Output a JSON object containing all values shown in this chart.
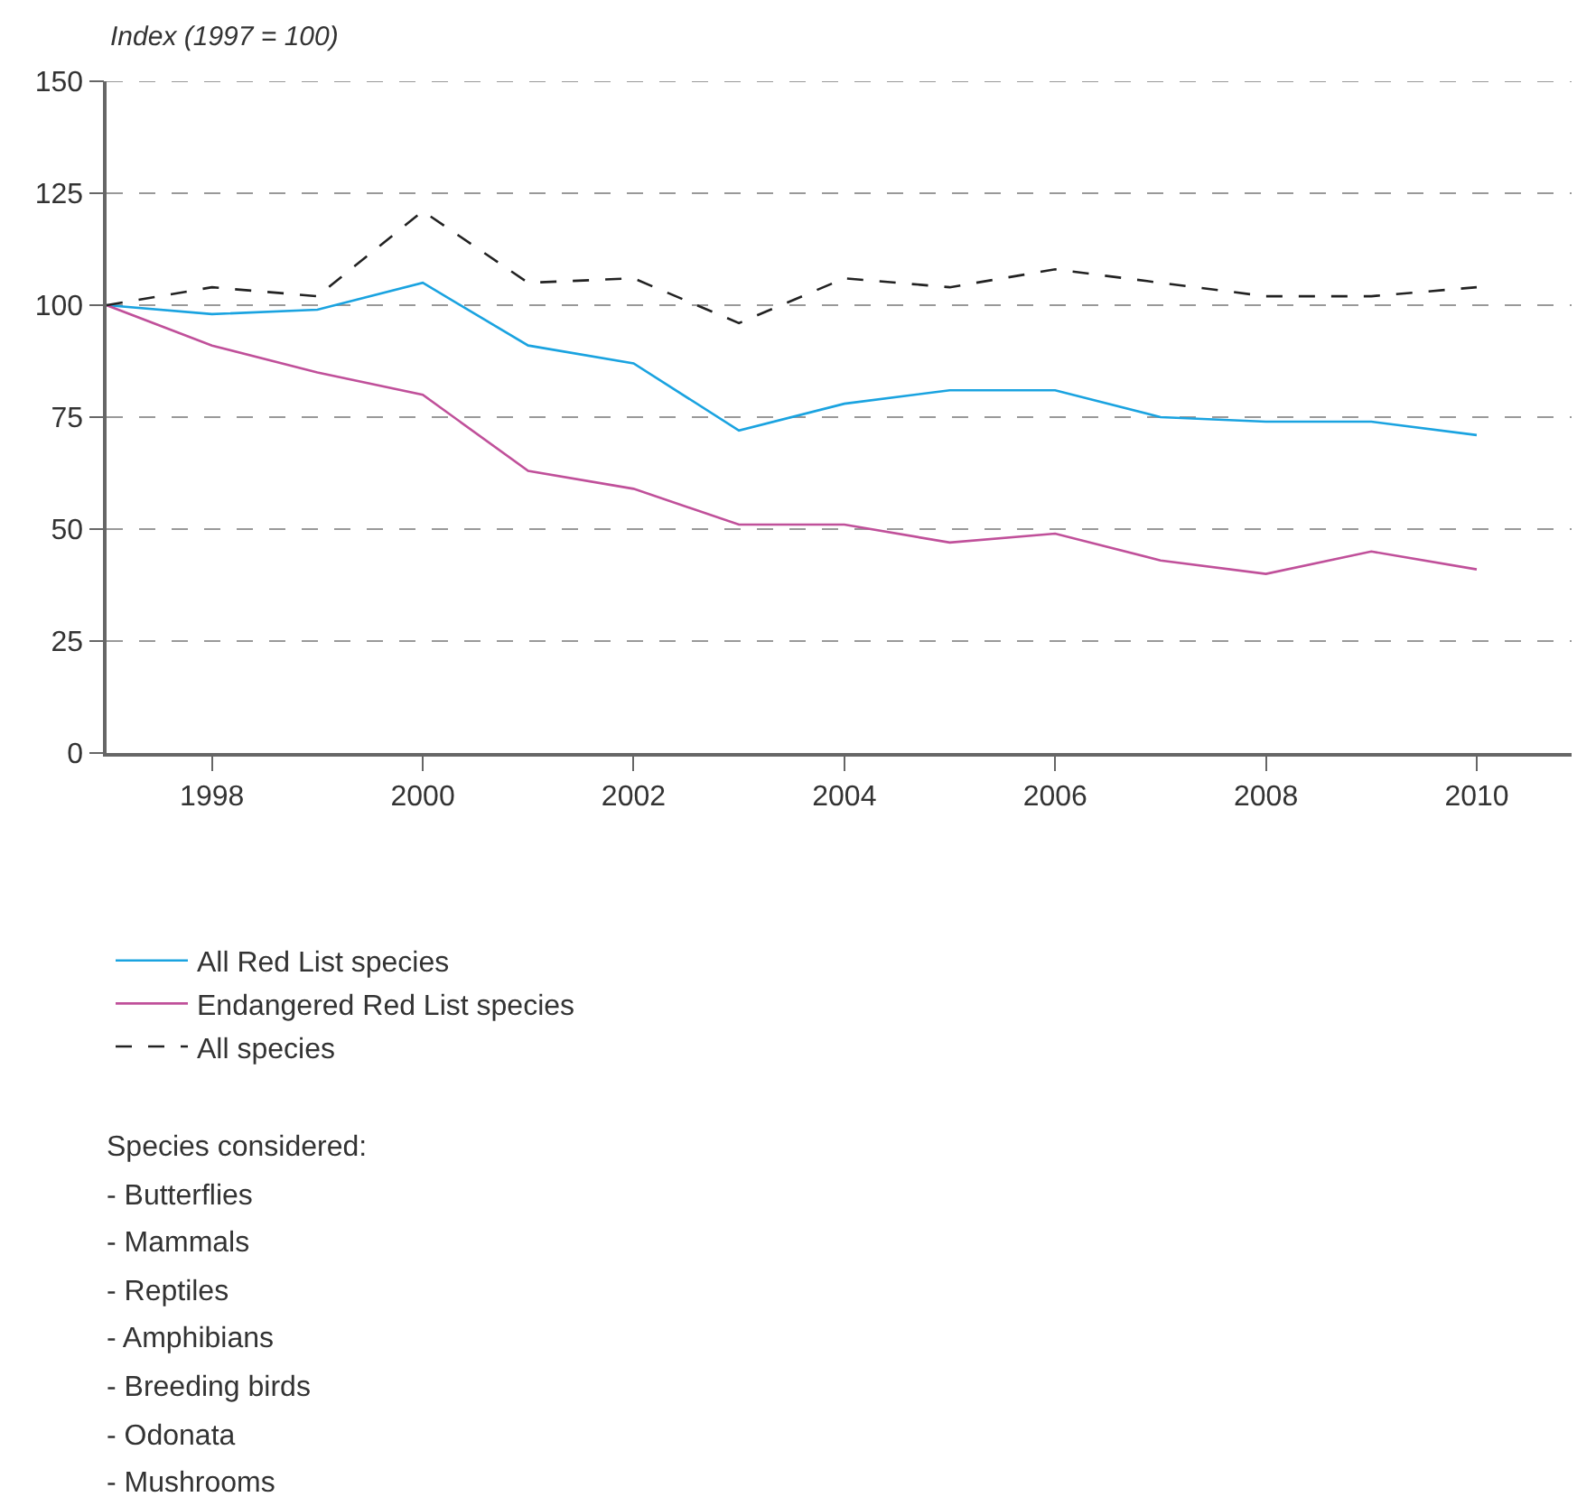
{
  "chart_data": {
    "type": "line",
    "ylabel": "Index (1997 = 100)",
    "x": [
      1997,
      1998,
      1999,
      2000,
      2001,
      2002,
      2003,
      2004,
      2005,
      2006,
      2007,
      2008,
      2009,
      2010
    ],
    "series": [
      {
        "name": "All Red List species",
        "color": "#1aa3e0",
        "line_style": "solid",
        "values": [
          100,
          98,
          99,
          105,
          91,
          87,
          72,
          78,
          81,
          81,
          75,
          74,
          74,
          71
        ]
      },
      {
        "name": "Endangered Red List species",
        "color": "#c0509a",
        "line_style": "solid",
        "values": [
          100,
          91,
          85,
          80,
          63,
          59,
          51,
          51,
          47,
          49,
          43,
          40,
          45,
          41
        ]
      },
      {
        "name": "All species",
        "color": "#222222",
        "line_style": "dashed",
        "values": [
          100,
          104,
          102,
          121,
          105,
          106,
          96,
          106,
          104,
          108,
          105,
          102,
          102,
          104
        ]
      }
    ],
    "xlim": [
      1997,
      2010.9
    ],
    "xticks": [
      1998,
      2000,
      2002,
      2004,
      2006,
      2008,
      2010
    ],
    "ylim": [
      0,
      150
    ],
    "yticks": [
      0,
      25,
      50,
      75,
      100,
      125,
      150
    ],
    "grid": "y",
    "legend": "bottom",
    "marker": "none",
    "annotations": [
      "Species considered:",
      "- Butterflies",
      "- Mammals",
      "- Reptiles",
      "- Amphibians",
      "- Breeding birds",
      "- Odonata",
      "- Mushrooms"
    ]
  }
}
